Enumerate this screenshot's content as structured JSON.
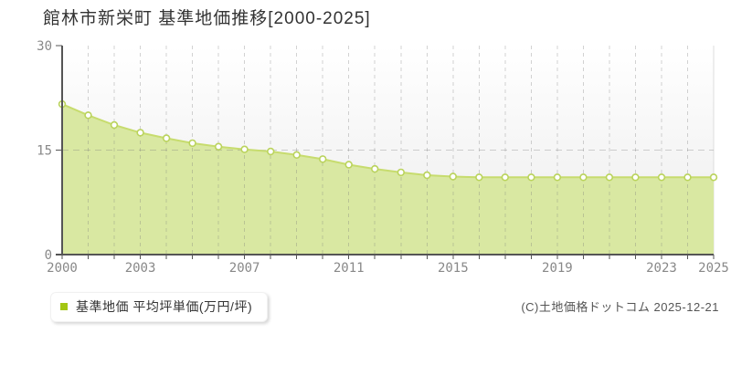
{
  "header": {
    "title": "館林市新栄町 基準地価推移[2000-2025]"
  },
  "legend": {
    "label": "基準地価 平均坪単価(万円/坪)",
    "marker_color": "#a3c613"
  },
  "footer": {
    "copyright": "(C)土地価格ドットコム 2025-12-21"
  },
  "chart_data": {
    "type": "area",
    "title": "館林市新栄町 基準地価推移[2000-2025]",
    "series_name": "基準地価 平均坪単価(万円/坪)",
    "xlabel": "",
    "ylabel": "",
    "x": [
      2000,
      2001,
      2002,
      2003,
      2004,
      2005,
      2006,
      2007,
      2008,
      2009,
      2010,
      2011,
      2012,
      2013,
      2014,
      2015,
      2016,
      2017,
      2018,
      2019,
      2020,
      2021,
      2022,
      2023,
      2024,
      2025
    ],
    "values": [
      21.6,
      20.0,
      18.6,
      17.5,
      16.7,
      16.0,
      15.5,
      15.1,
      14.8,
      14.3,
      13.7,
      12.9,
      12.3,
      11.8,
      11.4,
      11.2,
      11.1,
      11.1,
      11.1,
      11.1,
      11.1,
      11.1,
      11.1,
      11.1,
      11.1,
      11.1
    ],
    "xlim": [
      2000,
      2025
    ],
    "ylim": [
      0,
      30
    ],
    "y_ticks": [
      0,
      15,
      30
    ],
    "x_ticks": [
      2000,
      2003,
      2007,
      2011,
      2015,
      2019,
      2023,
      2025
    ],
    "grid_y": [
      15
    ],
    "grid": "vertical dashed line per year, horizontal dashed line at 15",
    "legend_position": "bottom-left",
    "colors": {
      "area_fill": "#d9e8a2",
      "line": "#c7dc6e",
      "point_fill": "#ffffff",
      "point_border": "#bad35c",
      "grid": "#777777",
      "grid_opacity": 0.32,
      "axis": "#555555",
      "tick_label": "#888888",
      "title": "#333333",
      "plot_bg_top": "#ffffff",
      "plot_bg_bottom": "#ececec",
      "plot_right_border": "#dddddd"
    }
  }
}
